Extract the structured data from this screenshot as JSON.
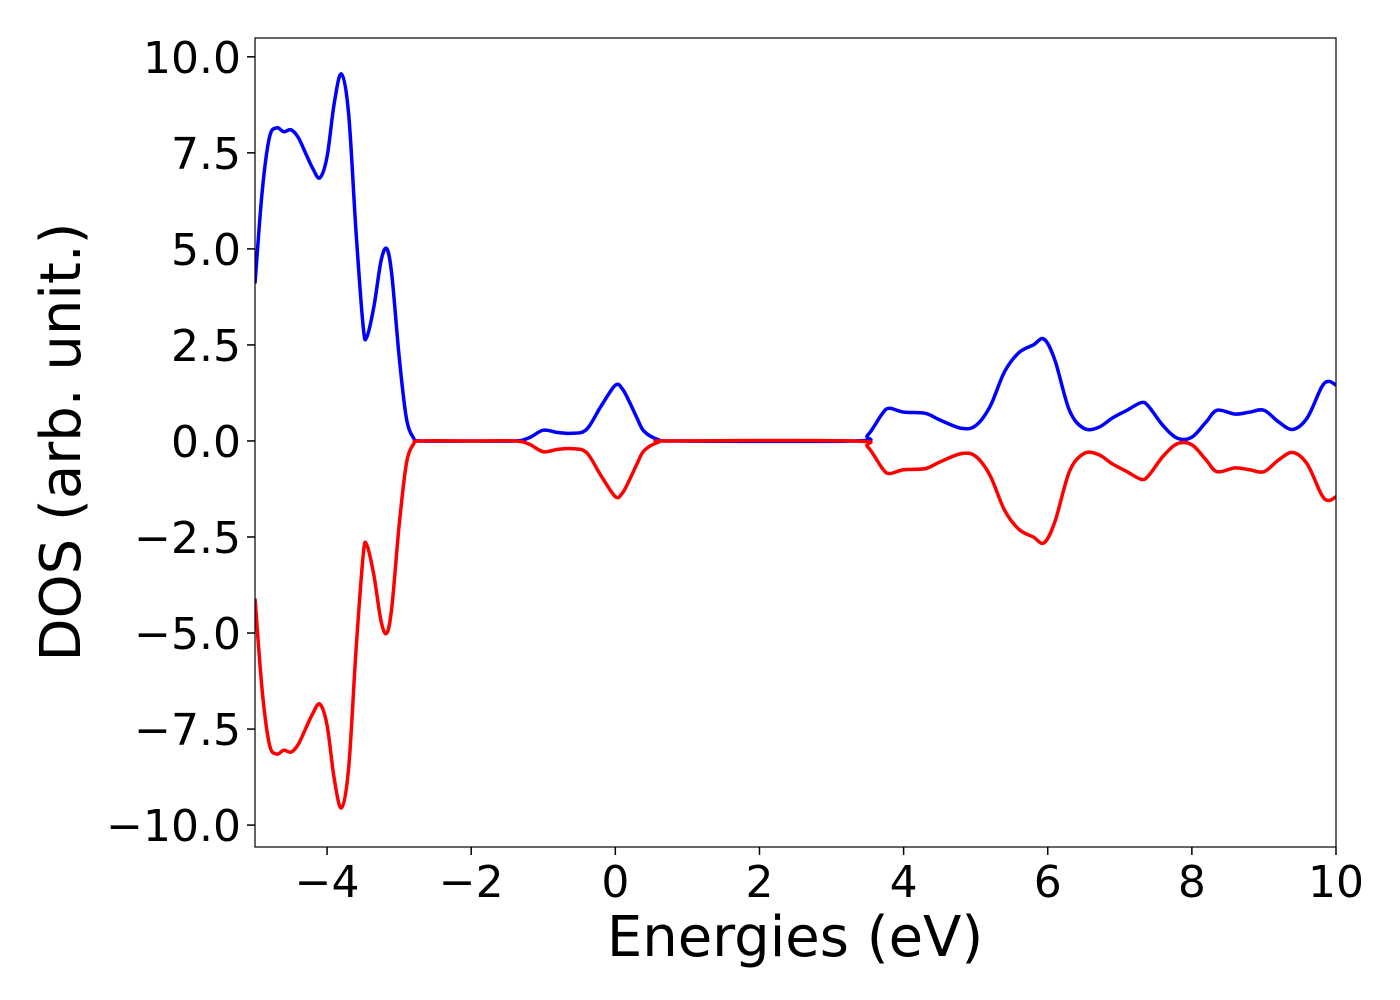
{
  "chart_data": {
    "type": "line",
    "xlabel": "Energies (eV)",
    "ylabel": "DOS (arb. unit.)",
    "x": [
      -5.0,
      -4.9,
      -4.8,
      -4.7,
      -4.6,
      -4.5,
      -4.4,
      -4.3,
      -4.2,
      -4.1,
      -4.0,
      -3.9,
      -3.8,
      -3.7,
      -3.6,
      -3.5,
      -3.45,
      -3.35,
      -3.25,
      -3.17,
      -3.1,
      -3.0,
      -2.9,
      -2.8,
      -2.7,
      -2.0,
      -1.4,
      -1.2,
      -1.0,
      -0.8,
      -0.6,
      -0.4,
      -0.2,
      0.0,
      0.1,
      0.2,
      0.3,
      0.4,
      0.6,
      0.8,
      3.3,
      3.5,
      3.7,
      3.8,
      4.0,
      4.3,
      4.5,
      4.8,
      5.0,
      5.2,
      5.4,
      5.6,
      5.8,
      5.95,
      6.1,
      6.3,
      6.5,
      6.7,
      6.9,
      7.1,
      7.3,
      7.4,
      7.6,
      7.8,
      8.0,
      8.2,
      8.35,
      8.6,
      8.8,
      9.0,
      9.2,
      9.4,
      9.6,
      9.8,
      9.9,
      10.0
    ],
    "series": [
      {
        "color": "#0000ff",
        "values": [
          4.1,
          6.5,
          7.9,
          8.15,
          8.05,
          8.1,
          7.9,
          7.5,
          7.1,
          6.85,
          7.4,
          8.8,
          9.55,
          8.5,
          5.5,
          3.0,
          2.7,
          3.5,
          4.7,
          5.0,
          4.3,
          2.2,
          0.6,
          0.08,
          0,
          0,
          0,
          0.08,
          0.28,
          0.22,
          0.2,
          0.3,
          0.9,
          1.45,
          1.35,
          1.0,
          0.6,
          0.25,
          0.03,
          0,
          0,
          0.15,
          0.7,
          0.85,
          0.75,
          0.72,
          0.55,
          0.33,
          0.4,
          0.9,
          1.8,
          2.3,
          2.5,
          2.65,
          2.1,
          0.8,
          0.33,
          0.35,
          0.6,
          0.8,
          1.0,
          0.9,
          0.4,
          0.07,
          0.1,
          0.5,
          0.8,
          0.7,
          0.75,
          0.8,
          0.5,
          0.3,
          0.6,
          1.4,
          1.55,
          1.45
        ]
      },
      {
        "color": "#ff0000",
        "values": [
          -4.1,
          -6.5,
          -7.9,
          -8.15,
          -8.05,
          -8.1,
          -7.9,
          -7.5,
          -7.1,
          -6.85,
          -7.4,
          -8.8,
          -9.55,
          -8.5,
          -5.5,
          -3.0,
          -2.7,
          -3.5,
          -4.7,
          -5.0,
          -4.3,
          -2.2,
          -0.6,
          -0.08,
          0,
          0,
          0,
          -0.08,
          -0.28,
          -0.22,
          -0.2,
          -0.3,
          -0.9,
          -1.45,
          -1.35,
          -1.0,
          -0.6,
          -0.25,
          -0.03,
          0,
          0,
          -0.15,
          -0.7,
          -0.85,
          -0.75,
          -0.72,
          -0.55,
          -0.33,
          -0.4,
          -0.9,
          -1.8,
          -2.3,
          -2.5,
          -2.65,
          -2.1,
          -0.8,
          -0.33,
          -0.35,
          -0.6,
          -0.8,
          -1.0,
          -0.9,
          -0.4,
          -0.07,
          -0.1,
          -0.5,
          -0.8,
          -0.7,
          -0.75,
          -0.8,
          -0.5,
          -0.3,
          -0.6,
          -1.4,
          -1.55,
          -1.45
        ]
      }
    ],
    "xlim": [
      -5,
      10
    ],
    "xticks": [
      {
        "value": -4,
        "label": "−4"
      },
      {
        "value": -2,
        "label": "−2"
      },
      0,
      2,
      4,
      6,
      8,
      10
    ],
    "ylim": [
      -10.57,
      10.49
    ],
    "yticks": [
      {
        "value": -10,
        "label": "−10.0"
      },
      {
        "value": -7.5,
        "label": "−7.5"
      },
      {
        "value": -5,
        "label": "−5.0"
      },
      {
        "value": -2.5,
        "label": "−2.5"
      },
      {
        "value": 0,
        "label": "0.0"
      },
      2.5,
      {
        "value": 5,
        "label": "5.0"
      },
      7.5,
      {
        "value": 10,
        "label": "10.0"
      }
    ],
    "grid": false
  }
}
